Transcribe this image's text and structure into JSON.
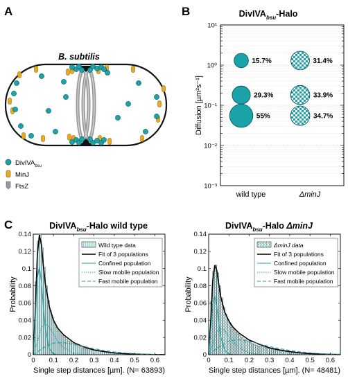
{
  "panels": {
    "a_letter": "A",
    "b_letter": "B",
    "c_letter": "C"
  },
  "panel_a": {
    "title": "B. subtilis",
    "legend": [
      {
        "name": "DivIVA",
        "sub": "bsu",
        "color": "#1aa3a8"
      },
      {
        "name": "MinJ",
        "sub": "",
        "color": "#e8a820"
      },
      {
        "name": "FtsZ",
        "sub": "",
        "color": "#9a9a9a"
      }
    ]
  },
  "colors": {
    "teal": "#1aa3a8",
    "light_teal": "#bfe6e8",
    "minj": "#e8a820",
    "ftsz": "#a8a8a8"
  },
  "chart_data": [
    {
      "id": "B",
      "type": "scatter",
      "title_main": "DivIVA",
      "title_sub": "bsu",
      "title_rest": "-Halo",
      "ylabel": "Diffusion [µm²s⁻¹]",
      "yscale": "log",
      "ylim": [
        0.001,
        10
      ],
      "yticks": [
        "10⁻³",
        "10⁻²",
        "10⁻¹",
        "10⁰",
        "10¹"
      ],
      "categories": [
        "wild type",
        "ΔminJ"
      ],
      "grid": true,
      "series": [
        {
          "name": "wild type",
          "style": "solid",
          "points": [
            {
              "y": 1.3,
              "fraction": 15.7,
              "label": "15.7%"
            },
            {
              "y": 0.18,
              "fraction": 29.3,
              "label": "29.3%"
            },
            {
              "y": 0.055,
              "fraction": 55,
              "label": "55%"
            }
          ]
        },
        {
          "name": "ΔminJ",
          "style": "checkered",
          "points": [
            {
              "y": 1.3,
              "fraction": 31.4,
              "label": "31.4%"
            },
            {
              "y": 0.18,
              "fraction": 33.9,
              "label": "33.9%"
            },
            {
              "y": 0.055,
              "fraction": 34.7,
              "label": "34.7%"
            }
          ]
        }
      ]
    },
    {
      "id": "C1",
      "type": "bar",
      "title_main": "DivIVA",
      "title_sub": "bsu",
      "title_rest": "-Halo wild type",
      "xlabel": "Single step distances [µm]. (N= 63893)",
      "ylabel": "Probability",
      "xlim": [
        0,
        0.65
      ],
      "ylim": [
        0,
        0.14
      ],
      "xticks": [
        0,
        0.1,
        0.2,
        0.3,
        0.4,
        0.5,
        0.6
      ],
      "yticks": [
        0,
        0.02,
        0.04,
        0.06,
        0.08,
        0.1,
        0.12,
        0.14
      ],
      "legend": [
        "Wild type data",
        "Fit of 3 populations",
        "Confined population",
        "Slow mobile population",
        "Fast mobile population"
      ],
      "histogram_x": [
        0.005,
        0.015,
        0.025,
        0.035,
        0.045,
        0.055,
        0.065,
        0.075,
        0.085,
        0.095,
        0.105,
        0.115,
        0.125,
        0.135,
        0.145,
        0.155,
        0.165,
        0.175,
        0.185,
        0.195,
        0.205,
        0.215,
        0.225,
        0.235,
        0.245,
        0.255,
        0.265,
        0.275,
        0.285,
        0.295,
        0.305,
        0.315,
        0.325,
        0.335,
        0.345,
        0.355,
        0.365,
        0.375,
        0.385,
        0.395,
        0.405,
        0.415,
        0.425,
        0.435,
        0.445,
        0.455,
        0.465,
        0.475,
        0.485,
        0.495
      ],
      "histogram_y": [
        0.02,
        0.085,
        0.132,
        0.139,
        0.124,
        0.101,
        0.08,
        0.063,
        0.051,
        0.043,
        0.037,
        0.032,
        0.028,
        0.025,
        0.022,
        0.02,
        0.018,
        0.016,
        0.015,
        0.013,
        0.012,
        0.011,
        0.01,
        0.009,
        0.008,
        0.0075,
        0.007,
        0.0065,
        0.006,
        0.0055,
        0.005,
        0.0045,
        0.004,
        0.0037,
        0.0034,
        0.003,
        0.0028,
        0.0025,
        0.0023,
        0.0021,
        0.0019,
        0.0017,
        0.0015,
        0.0013,
        0.0012,
        0.001,
        0.0009,
        0.0008,
        0.0007,
        0.0006
      ],
      "curves": [
        {
          "name": "Fit of 3 populations",
          "x": [
            0,
            0.01,
            0.02,
            0.03,
            0.04,
            0.05,
            0.06,
            0.08,
            0.1,
            0.12,
            0.15,
            0.2,
            0.25,
            0.3,
            0.35,
            0.4,
            0.45,
            0.5,
            0.55,
            0.6,
            0.65
          ],
          "y": [
            0,
            0.05,
            0.115,
            0.139,
            0.128,
            0.103,
            0.082,
            0.055,
            0.04,
            0.031,
            0.023,
            0.014,
            0.009,
            0.0055,
            0.0035,
            0.002,
            0.0012,
            0.0007,
            0.0004,
            0.0002,
            0.0001
          ]
        },
        {
          "name": "Confined population",
          "x": [
            0,
            0.01,
            0.02,
            0.03,
            0.04,
            0.05,
            0.06,
            0.08,
            0.1,
            0.12,
            0.15
          ],
          "y": [
            0,
            0.04,
            0.089,
            0.102,
            0.085,
            0.055,
            0.03,
            0.007,
            0.001,
            0.0001,
            0
          ]
        },
        {
          "name": "Slow mobile population",
          "x": [
            0,
            0.02,
            0.04,
            0.06,
            0.08,
            0.1,
            0.12,
            0.15,
            0.2,
            0.25,
            0.3
          ],
          "y": [
            0,
            0.014,
            0.032,
            0.036,
            0.032,
            0.024,
            0.016,
            0.008,
            0.002,
            0.0004,
            0
          ]
        },
        {
          "name": "Fast mobile population",
          "x": [
            0,
            0.05,
            0.1,
            0.15,
            0.2,
            0.25,
            0.3,
            0.35,
            0.4,
            0.45,
            0.5,
            0.55,
            0.6,
            0.65
          ],
          "y": [
            0,
            0.008,
            0.0135,
            0.014,
            0.012,
            0.0095,
            0.007,
            0.0048,
            0.0032,
            0.002,
            0.0012,
            0.0007,
            0.0004,
            0.0002
          ]
        }
      ]
    },
    {
      "id": "C2",
      "type": "bar",
      "title_main": "DivIVA",
      "title_sub": "bsu",
      "title_rest": "-Halo ",
      "title_italic": "ΔminJ",
      "xlabel": "Single step distances [µm]. (N= 48481)",
      "ylabel": "Probability",
      "xlim": [
        0,
        0.65
      ],
      "ylim": [
        0,
        0.14
      ],
      "xticks": [
        0,
        0.1,
        0.2,
        0.3,
        0.4,
        0.5,
        0.6
      ],
      "yticks": [
        0,
        0.02,
        0.04,
        0.06,
        0.08,
        0.1,
        0.12,
        0.14
      ],
      "legend": [
        "ΔminJ data",
        "Fit of 3 populations",
        "Confined population",
        "Slow mobile population",
        "Fast mobile population"
      ],
      "histogram_x": [
        0.005,
        0.015,
        0.025,
        0.035,
        0.045,
        0.055,
        0.065,
        0.075,
        0.085,
        0.095,
        0.105,
        0.115,
        0.125,
        0.135,
        0.145,
        0.155,
        0.165,
        0.175,
        0.185,
        0.195,
        0.205,
        0.215,
        0.225,
        0.235,
        0.245,
        0.255,
        0.265,
        0.275,
        0.285,
        0.295,
        0.305,
        0.315,
        0.325,
        0.335,
        0.345,
        0.355,
        0.365,
        0.375,
        0.385,
        0.395,
        0.405,
        0.415,
        0.425,
        0.435,
        0.445,
        0.455,
        0.465,
        0.475,
        0.485,
        0.495
      ],
      "histogram_y": [
        0.015,
        0.062,
        0.097,
        0.104,
        0.095,
        0.08,
        0.066,
        0.055,
        0.047,
        0.041,
        0.036,
        0.032,
        0.029,
        0.026,
        0.024,
        0.022,
        0.02,
        0.018,
        0.017,
        0.015,
        0.014,
        0.013,
        0.012,
        0.011,
        0.01,
        0.0095,
        0.009,
        0.0085,
        0.008,
        0.0075,
        0.007,
        0.0065,
        0.006,
        0.0055,
        0.005,
        0.0047,
        0.0044,
        0.004,
        0.0037,
        0.0034,
        0.003,
        0.0027,
        0.0024,
        0.0021,
        0.0018,
        0.0016,
        0.0014,
        0.0012,
        0.001,
        0.0009
      ],
      "curves": [
        {
          "name": "Fit of 3 populations",
          "x": [
            0,
            0.01,
            0.02,
            0.03,
            0.04,
            0.05,
            0.06,
            0.08,
            0.1,
            0.12,
            0.15,
            0.2,
            0.25,
            0.3,
            0.35,
            0.4,
            0.45,
            0.5,
            0.55,
            0.6,
            0.65
          ],
          "y": [
            0,
            0.038,
            0.086,
            0.104,
            0.098,
            0.082,
            0.067,
            0.049,
            0.039,
            0.032,
            0.025,
            0.017,
            0.012,
            0.008,
            0.0055,
            0.0035,
            0.0022,
            0.0013,
            0.0008,
            0.0004,
            0.0002
          ]
        },
        {
          "name": "Confined population",
          "x": [
            0,
            0.01,
            0.02,
            0.03,
            0.04,
            0.05,
            0.06,
            0.08,
            0.1,
            0.12,
            0.15
          ],
          "y": [
            0,
            0.028,
            0.06,
            0.068,
            0.056,
            0.037,
            0.02,
            0.005,
            0.0008,
            0.0001,
            0
          ]
        },
        {
          "name": "Slow mobile population",
          "x": [
            0,
            0.02,
            0.04,
            0.06,
            0.08,
            0.1,
            0.12,
            0.15,
            0.2,
            0.25,
            0.3
          ],
          "y": [
            0,
            0.012,
            0.027,
            0.031,
            0.028,
            0.021,
            0.015,
            0.008,
            0.002,
            0.0004,
            0
          ]
        },
        {
          "name": "Fast mobile population",
          "x": [
            0,
            0.05,
            0.1,
            0.15,
            0.2,
            0.25,
            0.3,
            0.35,
            0.4,
            0.45,
            0.5,
            0.55,
            0.6,
            0.65
          ],
          "y": [
            0,
            0.009,
            0.016,
            0.0175,
            0.0155,
            0.0125,
            0.0095,
            0.007,
            0.005,
            0.0033,
            0.0021,
            0.0013,
            0.0008,
            0.0004
          ]
        }
      ]
    }
  ]
}
